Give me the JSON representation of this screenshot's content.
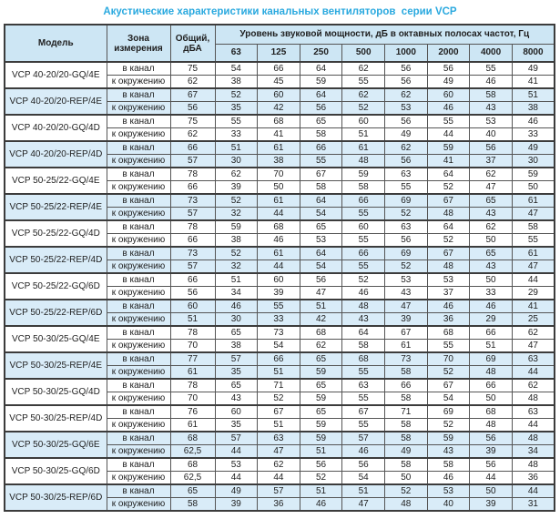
{
  "title": "Акустические характеристики канальных вентиляторов  серии VCP",
  "colors": {
    "title_accent": "#2aa9df",
    "header_bg": "#cde6f4",
    "highlight_row_bg": "#d9ecf8",
    "plain_row_bg": "#ffffff",
    "border": "#3c3c3c"
  },
  "table": {
    "headers": {
      "model": "Модель",
      "zone": "Зона\nизмерения",
      "total": "Общий,\nдБА",
      "spl_group": "Уровень звуковой мощности, дБ в октавных полосах частот, Гц",
      "frequencies": [
        "63",
        "125",
        "250",
        "500",
        "1000",
        "2000",
        "4000",
        "8000"
      ]
    },
    "zone_labels": [
      "в канал",
      "к окружению"
    ],
    "models": [
      {
        "model": "VCP 40-20/20-GQ/4E",
        "highlight": false,
        "in_duct": {
          "total": 75,
          "bands": [
            54,
            66,
            64,
            62,
            56,
            56,
            55,
            49
          ]
        },
        "to_ambient": {
          "total": 62,
          "bands": [
            38,
            45,
            59,
            55,
            56,
            49,
            46,
            41
          ]
        }
      },
      {
        "model": "VCP 40-20/20-REP/4E",
        "highlight": true,
        "in_duct": {
          "total": 67,
          "bands": [
            52,
            60,
            64,
            62,
            62,
            60,
            58,
            51
          ]
        },
        "to_ambient": {
          "total": 56,
          "bands": [
            35,
            42,
            56,
            52,
            53,
            46,
            43,
            38
          ]
        }
      },
      {
        "model": "VCP 40-20/20-GQ/4D",
        "highlight": false,
        "in_duct": {
          "total": 75,
          "bands": [
            55,
            68,
            65,
            60,
            56,
            55,
            53,
            46
          ]
        },
        "to_ambient": {
          "total": 62,
          "bands": [
            33,
            41,
            58,
            51,
            49,
            44,
            40,
            33
          ]
        }
      },
      {
        "model": "VCP 40-20/20-REP/4D",
        "highlight": true,
        "in_duct": {
          "total": 66,
          "bands": [
            51,
            61,
            66,
            61,
            62,
            59,
            56,
            49
          ]
        },
        "to_ambient": {
          "total": 57,
          "bands": [
            30,
            38,
            55,
            48,
            56,
            41,
            37,
            30
          ]
        }
      },
      {
        "model": "VCP 50-25/22-GQ/4E",
        "highlight": false,
        "in_duct": {
          "total": 78,
          "bands": [
            62,
            70,
            67,
            59,
            63,
            64,
            62,
            59
          ]
        },
        "to_ambient": {
          "total": 66,
          "bands": [
            39,
            50,
            58,
            58,
            55,
            52,
            47,
            50
          ]
        }
      },
      {
        "model": "VCP 50-25/22-REP/4E",
        "highlight": true,
        "in_duct": {
          "total": 73,
          "bands": [
            52,
            61,
            64,
            66,
            69,
            67,
            65,
            61
          ]
        },
        "to_ambient": {
          "total": 57,
          "bands": [
            32,
            44,
            54,
            55,
            52,
            48,
            43,
            47
          ]
        }
      },
      {
        "model": "VCP 50-25/22-GQ/4D",
        "highlight": false,
        "in_duct": {
          "total": 78,
          "bands": [
            59,
            68,
            65,
            60,
            63,
            64,
            62,
            58
          ]
        },
        "to_ambient": {
          "total": 66,
          "bands": [
            38,
            46,
            53,
            55,
            56,
            52,
            50,
            55
          ]
        }
      },
      {
        "model": "VCP 50-25/22-REP/4D",
        "highlight": true,
        "in_duct": {
          "total": 73,
          "bands": [
            52,
            61,
            64,
            66,
            69,
            67,
            65,
            61
          ]
        },
        "to_ambient": {
          "total": 57,
          "bands": [
            32,
            44,
            54,
            55,
            52,
            48,
            43,
            47
          ]
        }
      },
      {
        "model": "VCP 50-25/22-GQ/6D",
        "highlight": false,
        "in_duct": {
          "total": 66,
          "bands": [
            51,
            60,
            56,
            52,
            53,
            53,
            50,
            44
          ]
        },
        "to_ambient": {
          "total": 56,
          "bands": [
            34,
            39,
            47,
            46,
            43,
            37,
            33,
            29
          ]
        }
      },
      {
        "model": "VCP 50-25/22-REP/6D",
        "highlight": true,
        "in_duct": {
          "total": 60,
          "bands": [
            46,
            55,
            51,
            48,
            47,
            46,
            46,
            41
          ]
        },
        "to_ambient": {
          "total": 51,
          "bands": [
            30,
            33,
            42,
            43,
            39,
            36,
            29,
            25
          ]
        }
      },
      {
        "model": "VCP 50-30/25-GQ/4E",
        "highlight": false,
        "in_duct": {
          "total": 78,
          "bands": [
            65,
            73,
            68,
            64,
            67,
            68,
            66,
            62
          ]
        },
        "to_ambient": {
          "total": 70,
          "bands": [
            38,
            54,
            62,
            58,
            61,
            55,
            51,
            47
          ]
        }
      },
      {
        "model": "VCP 50-30/25-REP/4E",
        "highlight": true,
        "in_duct": {
          "total": 77,
          "bands": [
            57,
            66,
            65,
            68,
            73,
            70,
            69,
            63
          ]
        },
        "to_ambient": {
          "total": 61,
          "bands": [
            35,
            51,
            59,
            55,
            58,
            52,
            48,
            44
          ]
        }
      },
      {
        "model": "VCP 50-30/25-GQ/4D",
        "highlight": false,
        "in_duct": {
          "total": 78,
          "bands": [
            65,
            71,
            65,
            63,
            66,
            67,
            66,
            62
          ]
        },
        "to_ambient": {
          "total": 70,
          "bands": [
            43,
            52,
            59,
            55,
            58,
            54,
            50,
            48
          ]
        }
      },
      {
        "model": "VCP 50-30/25-REP/4D",
        "highlight": false,
        "in_duct": {
          "total": 76,
          "bands": [
            60,
            67,
            65,
            67,
            71,
            69,
            68,
            63
          ]
        },
        "to_ambient": {
          "total": 61,
          "bands": [
            35,
            51,
            59,
            55,
            58,
            52,
            48,
            44
          ]
        }
      },
      {
        "model": "VCP 50-30/25-GQ/6E",
        "highlight": true,
        "in_duct": {
          "total": 68,
          "bands": [
            57,
            63,
            59,
            57,
            58,
            59,
            56,
            48
          ]
        },
        "to_ambient": {
          "total": "62,5",
          "bands": [
            44,
            47,
            51,
            46,
            49,
            43,
            39,
            34
          ]
        }
      },
      {
        "model": "VCP 50-30/25-GQ/6D",
        "highlight": false,
        "in_duct": {
          "total": 68,
          "bands": [
            53,
            62,
            56,
            56,
            58,
            58,
            56,
            48
          ]
        },
        "to_ambient": {
          "total": "62,5",
          "bands": [
            44,
            44,
            52,
            54,
            50,
            46,
            44,
            36
          ]
        }
      },
      {
        "model": "VCP 50-30/25-REP/6D",
        "highlight": true,
        "in_duct": {
          "total": 65,
          "bands": [
            49,
            57,
            51,
            51,
            52,
            53,
            50,
            44
          ]
        },
        "to_ambient": {
          "total": 58,
          "bands": [
            39,
            36,
            46,
            47,
            48,
            40,
            39,
            31
          ]
        }
      }
    ]
  }
}
